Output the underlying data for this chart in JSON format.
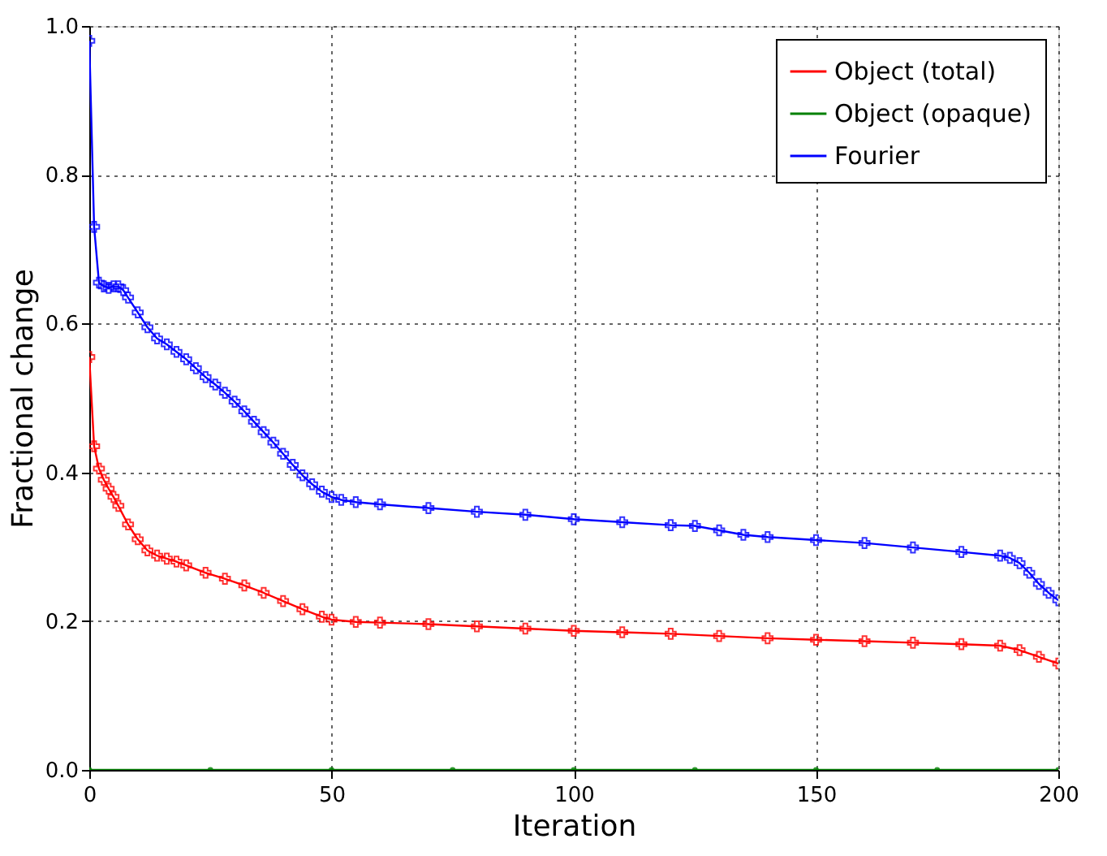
{
  "chart_data": {
    "type": "line",
    "xlabel": "Iteration",
    "ylabel": "Fractional change",
    "xlim": [
      0,
      200
    ],
    "ylim": [
      0,
      1.0
    ],
    "xticks": [
      0,
      50,
      100,
      150,
      200
    ],
    "yticks": [
      {
        "value": 0,
        "label": "0.0"
      },
      {
        "value": 0.2,
        "label": "0.2"
      },
      {
        "value": 0.4,
        "label": "0.4"
      },
      {
        "value": 0.6,
        "label": "0.6"
      },
      {
        "value": 0.8,
        "label": "0.8"
      },
      {
        "value": 1,
        "label": "1.0"
      }
    ],
    "grid": true,
    "legend": "top right",
    "line_style": "solid",
    "series": [
      {
        "name": "Object (total)",
        "color": "#ff0000",
        "marker": "cross",
        "x": [
          0,
          1,
          2,
          3,
          4,
          5,
          6,
          8,
          10,
          12,
          14,
          16,
          18,
          20,
          24,
          28,
          32,
          36,
          40,
          44,
          48,
          50,
          55,
          60,
          70,
          80,
          90,
          100,
          110,
          120,
          130,
          140,
          150,
          160,
          170,
          180,
          188,
          192,
          196,
          200
        ],
        "values": [
          0.555,
          0.435,
          0.405,
          0.39,
          0.378,
          0.367,
          0.355,
          0.33,
          0.31,
          0.295,
          0.288,
          0.284,
          0.28,
          0.275,
          0.265,
          0.257,
          0.248,
          0.238,
          0.227,
          0.216,
          0.206,
          0.202,
          0.199,
          0.198,
          0.196,
          0.193,
          0.19,
          0.187,
          0.185,
          0.183,
          0.18,
          0.177,
          0.175,
          0.173,
          0.171,
          0.169,
          0.167,
          0.161,
          0.152,
          0.143
        ]
      },
      {
        "name": "Object (opaque)",
        "color": "#008000",
        "marker": "circle",
        "x": [
          0,
          25,
          50,
          75,
          100,
          125,
          150,
          175,
          200
        ],
        "values": [
          0,
          0,
          0,
          0,
          0,
          0,
          0,
          0,
          0
        ]
      },
      {
        "name": "Fourier",
        "color": "#0000ff",
        "marker": "cross",
        "x": [
          0,
          1,
          2,
          3,
          4,
          5,
          6,
          7,
          8,
          10,
          12,
          14,
          16,
          18,
          20,
          22,
          24,
          26,
          28,
          30,
          32,
          34,
          36,
          38,
          40,
          42,
          44,
          46,
          48,
          50,
          52,
          55,
          60,
          70,
          80,
          90,
          100,
          110,
          120,
          125,
          130,
          135,
          140,
          150,
          160,
          170,
          180,
          188,
          190,
          192,
          194,
          196,
          198,
          200
        ],
        "values": [
          0.98,
          0.73,
          0.655,
          0.65,
          0.648,
          0.65,
          0.65,
          0.645,
          0.635,
          0.615,
          0.595,
          0.58,
          0.572,
          0.562,
          0.552,
          0.54,
          0.528,
          0.518,
          0.507,
          0.495,
          0.482,
          0.468,
          0.454,
          0.44,
          0.425,
          0.41,
          0.396,
          0.384,
          0.374,
          0.367,
          0.363,
          0.36,
          0.357,
          0.352,
          0.347,
          0.343,
          0.337,
          0.333,
          0.329,
          0.328,
          0.322,
          0.316,
          0.313,
          0.309,
          0.305,
          0.299,
          0.293,
          0.288,
          0.285,
          0.278,
          0.265,
          0.25,
          0.238,
          0.228
        ]
      }
    ]
  }
}
